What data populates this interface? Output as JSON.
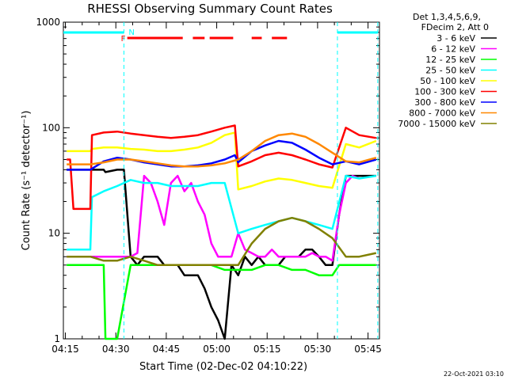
{
  "chart_data": {
    "type": "line",
    "title": "RHESSI Observing Summary Count Rates",
    "xlabel": "Start Time (02-Dec-02 04:10:22)",
    "ylabel": "Count Rate (s⁻¹ detector⁻¹)",
    "y_scale": "log",
    "ylim": [
      1,
      1000
    ],
    "xlim_minutes": [
      4.0,
      98.0
    ],
    "x_ticks": [
      "04:15",
      "04:30",
      "04:45",
      "05:00",
      "05:15",
      "05:30",
      "05:45"
    ],
    "y_ticks": [
      "1",
      "10",
      "100",
      "1000"
    ],
    "legend": {
      "placement": "top-right outside",
      "header": [
        "Det 1,3,4,5,6,9,",
        "FDecim 2, Att 0"
      ]
    },
    "series": [
      {
        "name": "3 - 6 keV",
        "color": "#000000",
        "x": [
          5,
          16,
          16.5,
          20,
          22,
          24,
          26,
          28,
          30,
          32,
          34,
          36,
          38,
          40,
          42,
          44,
          46,
          48,
          50,
          52,
          54,
          56,
          58,
          60,
          62,
          64,
          66,
          68,
          70,
          72,
          74,
          76,
          78,
          80,
          82,
          84,
          86,
          88,
          90,
          92,
          94,
          97
        ],
        "y": [
          40,
          40,
          38,
          40,
          40,
          6,
          5,
          6,
          6,
          6,
          5,
          5,
          5,
          4,
          4,
          4,
          3,
          2,
          1.5,
          1,
          5,
          4,
          6,
          5,
          6,
          5,
          5,
          5,
          6,
          6,
          6,
          7,
          7,
          6,
          5,
          5,
          15,
          35,
          35,
          35,
          35,
          35
        ]
      },
      {
        "name": "6 - 12 keV",
        "color": "#ff00ff",
        "x": [
          5,
          24,
          26,
          28,
          30,
          32,
          34,
          36,
          38,
          40,
          42,
          44,
          46,
          48,
          50,
          52,
          54,
          56,
          58,
          60,
          62,
          64,
          66,
          68,
          70,
          72,
          74,
          76,
          78,
          80,
          82,
          84,
          86,
          88,
          90,
          92
        ],
        "y": [
          6,
          6,
          6.5,
          35,
          30,
          20,
          12,
          30,
          35,
          25,
          30,
          20,
          15,
          8,
          6,
          6,
          6,
          10,
          7,
          6.5,
          6,
          6,
          7,
          6,
          6,
          6,
          6,
          6,
          6.5,
          6,
          6,
          5.5,
          15,
          30,
          35,
          33
        ]
      },
      {
        "name": "12 - 25 keV",
        "color": "#00ff00",
        "x": [
          5,
          16,
          16.5,
          20,
          24,
          28,
          32,
          36,
          40,
          44,
          48,
          52,
          56,
          60,
          64,
          68,
          72,
          76,
          80,
          84,
          86,
          88,
          90,
          94,
          97
        ],
        "y": [
          5,
          5,
          1,
          1,
          5,
          5,
          5,
          5,
          5,
          5,
          5,
          4.5,
          4.5,
          4.5,
          5,
          5,
          4.5,
          4.5,
          4,
          4,
          5,
          5,
          5,
          5,
          5
        ]
      },
      {
        "name": "25 - 50 keV",
        "color": "#00ffff",
        "x": [
          5,
          12,
          12.5,
          16,
          20,
          24,
          28,
          32,
          36,
          40,
          44,
          48,
          52,
          56,
          60,
          64,
          68,
          72,
          76,
          80,
          84,
          88,
          92,
          97
        ],
        "y": [
          7,
          7,
          22,
          25,
          28,
          32,
          30,
          30,
          28,
          28,
          28,
          30,
          30,
          10,
          11,
          12,
          13,
          14,
          13,
          12,
          11,
          35,
          33,
          35
        ]
      },
      {
        "name": "50 - 100 keV",
        "color": "#ffff00",
        "x": [
          5,
          12,
          12.5,
          16,
          20,
          24,
          28,
          32,
          36,
          40,
          44,
          48,
          52,
          55,
          56,
          60,
          64,
          68,
          72,
          76,
          80,
          84,
          88,
          92,
          97
        ],
        "y": [
          60,
          60,
          63,
          65,
          65,
          63,
          62,
          60,
          60,
          62,
          65,
          72,
          85,
          90,
          26,
          28,
          31,
          33,
          32,
          30,
          28,
          27,
          70,
          65,
          75
        ]
      },
      {
        "name": "100 - 300 keV",
        "color": "#ff0000",
        "x": [
          5,
          6,
          7,
          12,
          12.5,
          16,
          20,
          24,
          28,
          32,
          36,
          40,
          44,
          48,
          52,
          55,
          56,
          60,
          64,
          68,
          72,
          76,
          80,
          84,
          88,
          92,
          97
        ],
        "y": [
          50,
          50,
          17,
          17,
          85,
          90,
          92,
          88,
          85,
          82,
          80,
          82,
          85,
          92,
          100,
          105,
          43,
          48,
          55,
          58,
          55,
          50,
          45,
          42,
          100,
          85,
          80
        ]
      },
      {
        "name": "300 - 800 keV",
        "color": "#0000ff",
        "x": [
          5,
          12,
          16,
          20,
          24,
          28,
          32,
          36,
          40,
          44,
          48,
          52,
          55,
          56,
          60,
          64,
          68,
          72,
          76,
          80,
          84,
          88,
          92,
          97
        ],
        "y": [
          40,
          40,
          48,
          52,
          50,
          47,
          45,
          43,
          43,
          44,
          46,
          50,
          55,
          47,
          60,
          68,
          75,
          72,
          62,
          52,
          45,
          48,
          45,
          50
        ]
      },
      {
        "name": "800 - 7000 keV",
        "color": "#ff8800",
        "x": [
          5,
          12,
          16,
          20,
          24,
          28,
          32,
          36,
          40,
          44,
          48,
          52,
          56,
          60,
          64,
          68,
          72,
          76,
          80,
          84,
          88,
          92,
          97
        ],
        "y": [
          45,
          45,
          47,
          50,
          50,
          48,
          46,
          44,
          43,
          43,
          44,
          46,
          50,
          60,
          75,
          85,
          88,
          82,
          70,
          58,
          48,
          47,
          52
        ]
      },
      {
        "name": "7000 - 15000 keV",
        "color": "#808000",
        "x": [
          5,
          12,
          16,
          20,
          24,
          28,
          32,
          36,
          40,
          44,
          48,
          52,
          56,
          60,
          64,
          68,
          72,
          76,
          80,
          84,
          88,
          92,
          97
        ],
        "y": [
          6,
          6,
          5.5,
          5.5,
          6,
          5.5,
          5,
          5,
          5,
          5,
          5,
          5,
          5,
          8,
          11,
          13,
          14,
          13,
          11,
          9,
          6,
          6,
          6.5
        ]
      }
    ],
    "state_bars": {
      "cyan": [
        [
          4.0,
          22.0
        ],
        [
          85.5,
          97.5
        ]
      ],
      "red": [
        [
          23.0,
          39.5
        ],
        [
          42.5,
          46.0
        ],
        [
          47.5,
          54.5
        ],
        [
          60.0,
          63.0
        ],
        [
          66.0,
          70.5
        ]
      ],
      "cyan_vertical_lines": [
        22.0,
        85.5,
        97.5
      ],
      "labels": {
        "F": "F",
        "N": "N"
      }
    },
    "footer_stamp": "22-Oct-2021 03:10"
  }
}
